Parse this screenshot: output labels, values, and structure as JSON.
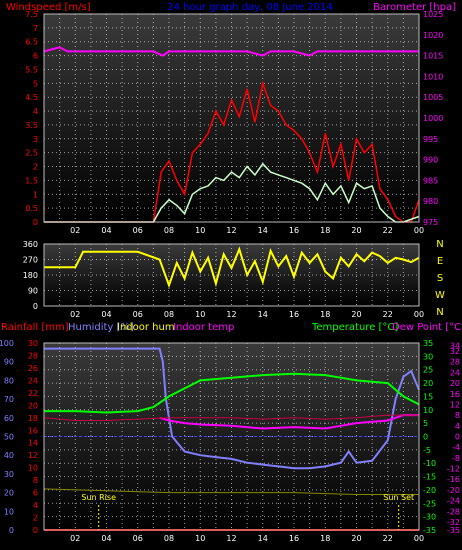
{
  "chart_data": [
    {
      "type": "line",
      "title": "24 hour graph day, 08 June 2014",
      "x_ticks": [
        "02",
        "04",
        "06",
        "08",
        "10",
        "12",
        "14",
        "16",
        "18",
        "20",
        "22",
        "00"
      ],
      "left_axis": {
        "label": "Windspeed [m/s]",
        "ticks": [
          "0",
          "0.5",
          "1",
          "1.5",
          "2",
          "2.5",
          "3",
          "3.5",
          "4",
          "4.5",
          "5",
          "5.5",
          "6",
          "6.5",
          "7",
          "7.5"
        ],
        "range": [
          0,
          7.5
        ],
        "color": "#ff0000"
      },
      "right_axis": {
        "label": "Barometer [hpa]",
        "ticks": [
          "975",
          "980",
          "985",
          "990",
          "995",
          "1000",
          "1005",
          "1010",
          "1015",
          "1020",
          "1025"
        ],
        "range": [
          975,
          1025
        ],
        "color": "#ff00ff"
      },
      "series": [
        {
          "name": "Barometer",
          "color": "#ff00ff",
          "x": [
            0.0,
            1.0,
            1.5,
            2.0,
            4.0,
            6.0,
            7.0,
            7.6,
            8.0,
            9.0,
            10.0,
            12.0,
            13.0,
            14.0,
            14.5,
            15.0,
            16.0,
            17.0,
            17.5,
            18.0,
            19.0,
            20.0,
            21.0,
            22.0,
            23.0,
            24.0
          ],
          "y": [
            1016,
            1017,
            1016,
            1016,
            1016,
            1016,
            1016,
            1015,
            1016,
            1016,
            1016,
            1016,
            1016,
            1015,
            1016,
            1016,
            1016,
            1015,
            1016,
            1016,
            1016,
            1016,
            1016,
            1016,
            1016,
            1016
          ]
        },
        {
          "name": "Wind gust",
          "color": "#ff0000",
          "x": [
            0,
            6,
            7,
            7.5,
            8,
            8.5,
            9,
            9.5,
            10,
            10.5,
            11,
            11.5,
            12,
            12.5,
            13,
            13.5,
            14,
            14.5,
            15,
            15.5,
            16,
            16.5,
            17,
            17.5,
            18,
            18.5,
            19,
            19.5,
            20,
            20.5,
            21,
            21.5,
            22,
            22.5,
            23,
            23.5,
            24
          ],
          "y": [
            0,
            0,
            0,
            1.8,
            2.2,
            1.5,
            1.0,
            2.5,
            2.8,
            3.2,
            4.0,
            3.5,
            4.4,
            3.8,
            4.8,
            3.6,
            5.0,
            4.2,
            4.0,
            3.5,
            3.3,
            3.0,
            2.5,
            1.8,
            3.2,
            2.0,
            2.8,
            1.5,
            3.0,
            2.5,
            2.8,
            1.2,
            0.8,
            0.2,
            0,
            0,
            0.8
          ]
        },
        {
          "name": "Wind speed",
          "color": "#ccffcc",
          "x": [
            0,
            6,
            7,
            7.5,
            8,
            8.5,
            9,
            9.5,
            10,
            10.5,
            11,
            11.5,
            12,
            12.5,
            13,
            13.5,
            14,
            14.5,
            15,
            15.5,
            16,
            16.5,
            17,
            17.5,
            18,
            18.5,
            19,
            19.5,
            20,
            20.5,
            21,
            21.5,
            22,
            22.5,
            23,
            24
          ],
          "y": [
            0,
            0,
            0,
            0.5,
            0.8,
            0.6,
            0.3,
            1.0,
            1.2,
            1.3,
            1.6,
            1.5,
            1.8,
            1.6,
            2.0,
            1.7,
            2.1,
            1.8,
            1.7,
            1.6,
            1.5,
            1.4,
            1.2,
            0.8,
            1.4,
            1.0,
            1.3,
            0.7,
            1.4,
            1.2,
            1.3,
            0.5,
            0.2,
            0,
            0,
            0.2
          ]
        }
      ],
      "x_range": [
        0,
        24
      ]
    },
    {
      "type": "line",
      "x_ticks": [
        "02",
        "04",
        "06",
        "08",
        "10",
        "12",
        "14",
        "16",
        "18",
        "20",
        "22",
        "00"
      ],
      "left_axis": {
        "label": "",
        "ticks": [
          "0",
          "90",
          "180",
          "270",
          "360"
        ],
        "range": [
          0,
          360
        ],
        "color": "#ffffff"
      },
      "right_axis": {
        "label": "",
        "ticks": [
          "N",
          "W",
          "S",
          "E",
          "N"
        ],
        "color": "#ffff00"
      },
      "series": [
        {
          "name": "Wind direction",
          "color": "#ffff00",
          "x": [
            0,
            2,
            2.5,
            4,
            6,
            7.4,
            8,
            8.5,
            9,
            9.5,
            10,
            10.5,
            11,
            11.5,
            12,
            12.5,
            13,
            13.5,
            14,
            14.5,
            15,
            15.5,
            16,
            16.5,
            17,
            17.5,
            18,
            18.5,
            19,
            19.5,
            20,
            20.5,
            21,
            21.5,
            22,
            22.5,
            23,
            23.5,
            24
          ],
          "y": [
            225,
            225,
            315,
            315,
            315,
            270,
            120,
            250,
            160,
            310,
            200,
            280,
            130,
            300,
            220,
            330,
            180,
            260,
            140,
            320,
            230,
            290,
            170,
            310,
            250,
            300,
            200,
            160,
            280,
            230,
            300,
            260,
            310,
            290,
            250,
            280,
            270,
            255,
            280
          ]
        }
      ],
      "x_range": [
        0,
        24
      ]
    },
    {
      "type": "line",
      "header": {
        "rainfall": "Rainfall [mm]",
        "humidity": "Humidity [%]",
        "indoor_hum": "Indoor hum",
        "indoor_temp": "Indoor temp",
        "temperature": "Temperature [°C]",
        "dewpoint": "Dew Point [°C]"
      },
      "x_ticks": [
        "02",
        "04",
        "06",
        "08",
        "10",
        "12",
        "14",
        "16",
        "18",
        "20",
        "22",
        "00"
      ],
      "x_extra_labels": [
        "Sun Rise",
        "Sun Set"
      ],
      "sunrise_x": 3.5,
      "sunset_x": 22.7,
      "axes": {
        "rain_ticks": [
          "0",
          "2",
          "4",
          "6",
          "8",
          "10",
          "12",
          "14",
          "16",
          "18",
          "20",
          "22",
          "24",
          "26",
          "28",
          "30"
        ],
        "humidity_ticks": [
          "0",
          "10",
          "20",
          "30",
          "40",
          "50",
          "60",
          "70",
          "80",
          "90",
          "100"
        ],
        "temperature_ticks": [
          "-35",
          "-30",
          "-25",
          "-20",
          "-15",
          "-10",
          "-5",
          "0",
          "5",
          "10",
          "15",
          "20",
          "25",
          "30",
          "35"
        ],
        "temperature_ticks_right": [
          "-35",
          "-32",
          "-28",
          "-24",
          "-20",
          "-16",
          "-12",
          "-8",
          "-4",
          "0",
          "4",
          "8",
          "12",
          "16",
          "20",
          "24",
          "28",
          "32",
          "34"
        ]
      },
      "series": [
        {
          "name": "Humidity",
          "color": "#8080ff",
          "unit": "%",
          "x": [
            0,
            4,
            7.4,
            7.6,
            7.8,
            8.2,
            9,
            10,
            11,
            12,
            13,
            14,
            15,
            16,
            17,
            18,
            19,
            19.5,
            20,
            21,
            22,
            22.5,
            23,
            23.5,
            24
          ],
          "y": [
            97,
            97,
            97,
            90,
            70,
            50,
            42,
            40,
            39,
            38,
            36,
            35,
            34,
            33,
            33,
            34,
            36,
            42,
            36,
            37,
            48,
            70,
            82,
            85,
            75
          ]
        },
        {
          "name": "Temperature",
          "color": "#00ff00",
          "unit": "°C",
          "x": [
            0,
            2,
            4,
            6,
            7,
            8,
            9,
            10,
            12,
            14,
            16,
            18,
            19,
            20,
            21,
            22,
            23,
            24
          ],
          "y": [
            9.5,
            9.5,
            9,
            9.5,
            11,
            15,
            18,
            21,
            22,
            23,
            23.5,
            23,
            22,
            21,
            20.5,
            20,
            15,
            12
          ]
        },
        {
          "name": "Dew Point",
          "color": "#ff00ff",
          "unit": "°C",
          "x": [
            7.4,
            8,
            9,
            10,
            12,
            14,
            16,
            18,
            19,
            20,
            21,
            22,
            23,
            24
          ],
          "y": [
            7,
            6,
            5,
            4.5,
            4,
            3,
            3.5,
            3,
            4,
            5,
            5.5,
            6,
            8,
            8
          ]
        },
        {
          "name": "Indoor temp",
          "color": "#cc0044",
          "unit": "°C",
          "x": [
            0,
            2,
            4,
            6,
            8,
            10,
            12,
            14,
            16,
            18,
            20,
            22,
            24
          ],
          "y": [
            7,
            6,
            6,
            6.5,
            7,
            7,
            7,
            6.5,
            7,
            6.5,
            7,
            8,
            8
          ]
        },
        {
          "name": "Indoor hum",
          "color": "#888800",
          "unit": "%",
          "x": [
            0,
            4,
            8,
            12,
            16,
            20,
            24
          ],
          "y": [
            22,
            21,
            20,
            20,
            20,
            19,
            19
          ]
        },
        {
          "name": "Rainfall",
          "color": "#ff0000",
          "unit": "mm",
          "x": [
            0,
            24
          ],
          "y": [
            0,
            0
          ]
        }
      ],
      "x_range": [
        0,
        24
      ]
    }
  ]
}
